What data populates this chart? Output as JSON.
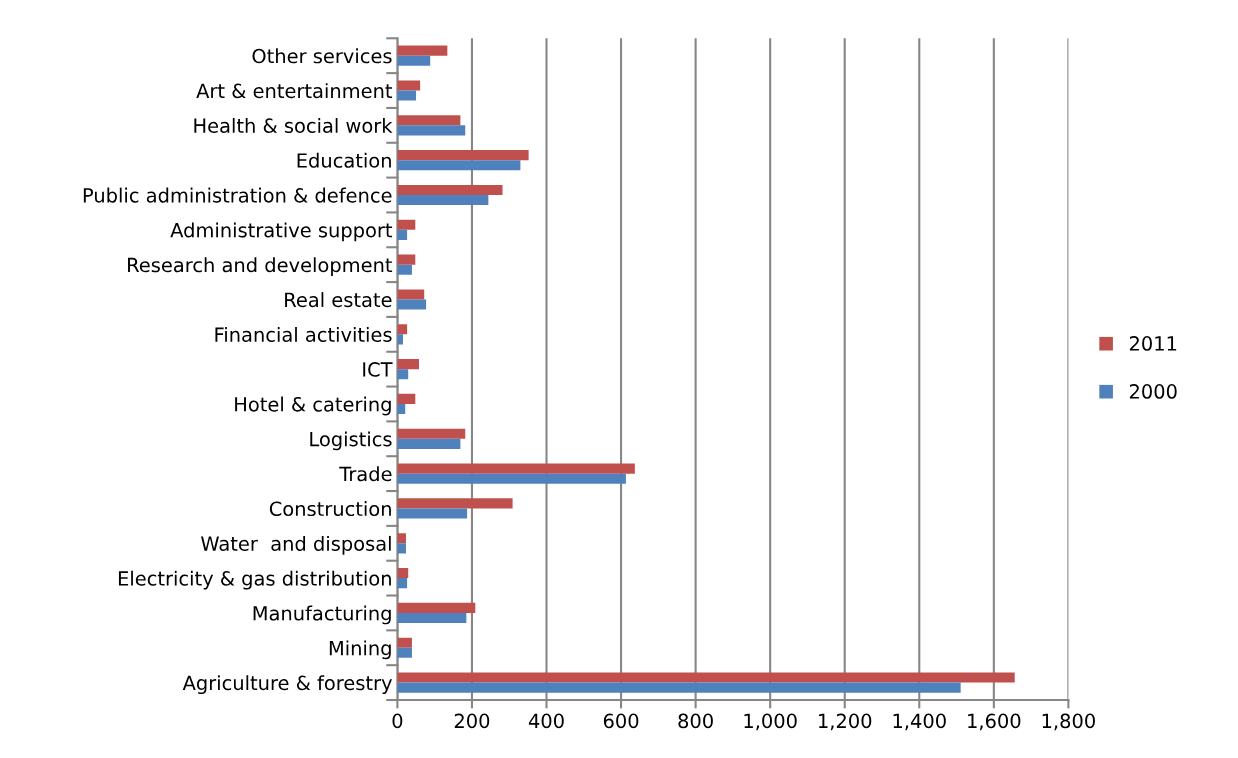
{
  "chart_data": {
    "type": "bar",
    "orientation": "horizontal",
    "categories": [
      "Other services",
      "Art & entertainment",
      "Health & social work",
      "Education",
      "Public administration & defence",
      "Administrative support",
      "Research and development",
      "Real estate",
      "Financial activities",
      "ICT",
      "Hotel & catering",
      "Logistics",
      "Trade",
      "Construction",
      "Water  and disposal",
      "Electricity & gas distribution",
      "Manufacturing",
      "Mining",
      "Agriculture & forestry"
    ],
    "series": [
      {
        "name": "2011",
        "color": "#c0504d",
        "values": [
          134,
          61,
          169,
          352,
          282,
          48,
          48,
          72,
          26,
          58,
          48,
          182,
          637,
          309,
          23,
          29,
          209,
          39,
          1656
        ]
      },
      {
        "name": "2000",
        "color": "#4f81bd",
        "values": [
          88,
          50,
          182,
          330,
          244,
          26,
          39,
          77,
          15,
          29,
          21,
          169,
          613,
          187,
          23,
          26,
          185,
          39,
          1511
        ]
      }
    ],
    "xlim": [
      0,
      1800
    ],
    "xticks": [
      {
        "value": 0,
        "label": "0"
      },
      {
        "value": 200,
        "label": "200"
      },
      {
        "value": 400,
        "label": "400"
      },
      {
        "value": 600,
        "label": "600"
      },
      {
        "value": 800,
        "label": "800"
      },
      {
        "value": 1000,
        "label": "1,000"
      },
      {
        "value": 1200,
        "label": "1,200"
      },
      {
        "value": 1400,
        "label": "1,400"
      },
      {
        "value": 1600,
        "label": "1,600"
      },
      {
        "value": 1800,
        "label": "1,800"
      }
    ],
    "grid": "x",
    "legend": "right"
  }
}
